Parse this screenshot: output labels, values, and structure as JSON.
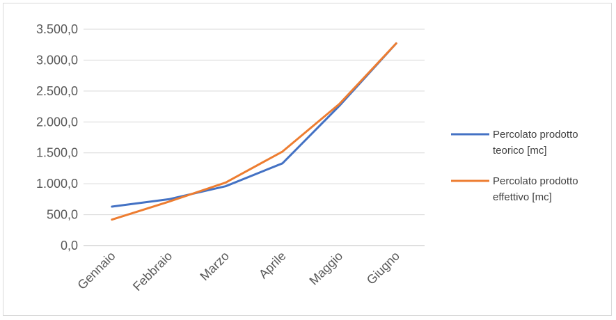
{
  "chart_data": {
    "type": "line",
    "title": "",
    "xlabel": "",
    "ylabel": "",
    "categories": [
      "Gennaio",
      "Febbraio",
      "Marzo",
      "Aprile",
      "Maggio",
      "Giugno"
    ],
    "ylim": [
      0,
      3500
    ],
    "yticks": [
      0,
      500,
      1000,
      1500,
      2000,
      2500,
      3000,
      3500
    ],
    "ytick_labels": [
      "0,0",
      "500,0",
      "1.000,0",
      "1.500,0",
      "2.000,0",
      "2.500,0",
      "3.000,0",
      "3.500,0"
    ],
    "grid": true,
    "legend_position": "right",
    "series": [
      {
        "name_lines": [
          "Percolato prodotto",
          "teorico [mc]"
        ],
        "color": "#4472C4",
        "values": [
          630,
          750,
          960,
          1330,
          2260,
          3270
        ]
      },
      {
        "name_lines": [
          "Percolato prodotto",
          "effettivo [mc]"
        ],
        "color": "#ED7D31",
        "values": [
          420,
          710,
          1020,
          1520,
          2290,
          3270
        ]
      }
    ]
  }
}
